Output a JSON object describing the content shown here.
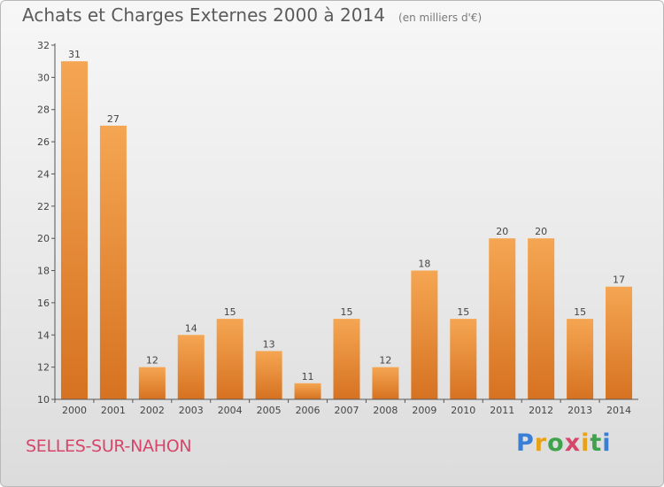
{
  "header": {
    "title": "Achats et Charges Externes 2000 à 2014",
    "unit": "(en milliers d'€)"
  },
  "place": "SELLES-SUR-NAHON",
  "logo": {
    "text": "Proxiti",
    "letter_colors": [
      "#3a7fd5",
      "#e8a21a",
      "#3fa34d",
      "#d6456a",
      "#e8a21a",
      "#3fa34d",
      "#3a7fd5"
    ]
  },
  "colors": {
    "bar_light": "#f5a652",
    "bar_dark": "#d67221",
    "axis": "#555555",
    "title": "#5b5b5b",
    "place": "#d6456a"
  },
  "chart_data": {
    "type": "bar",
    "categories": [
      "2000",
      "2001",
      "2002",
      "2003",
      "2004",
      "2005",
      "2006",
      "2007",
      "2008",
      "2009",
      "2010",
      "2011",
      "2012",
      "2013",
      "2014"
    ],
    "values": [
      31,
      27,
      12,
      14,
      15,
      13,
      11,
      15,
      12,
      18,
      15,
      20,
      20,
      15,
      17
    ],
    "ylim": [
      10,
      32
    ],
    "yticks": [
      10,
      12,
      14,
      16,
      18,
      20,
      22,
      24,
      26,
      28,
      30,
      32
    ],
    "data_labels": true,
    "grid": false,
    "legend": "none"
  }
}
